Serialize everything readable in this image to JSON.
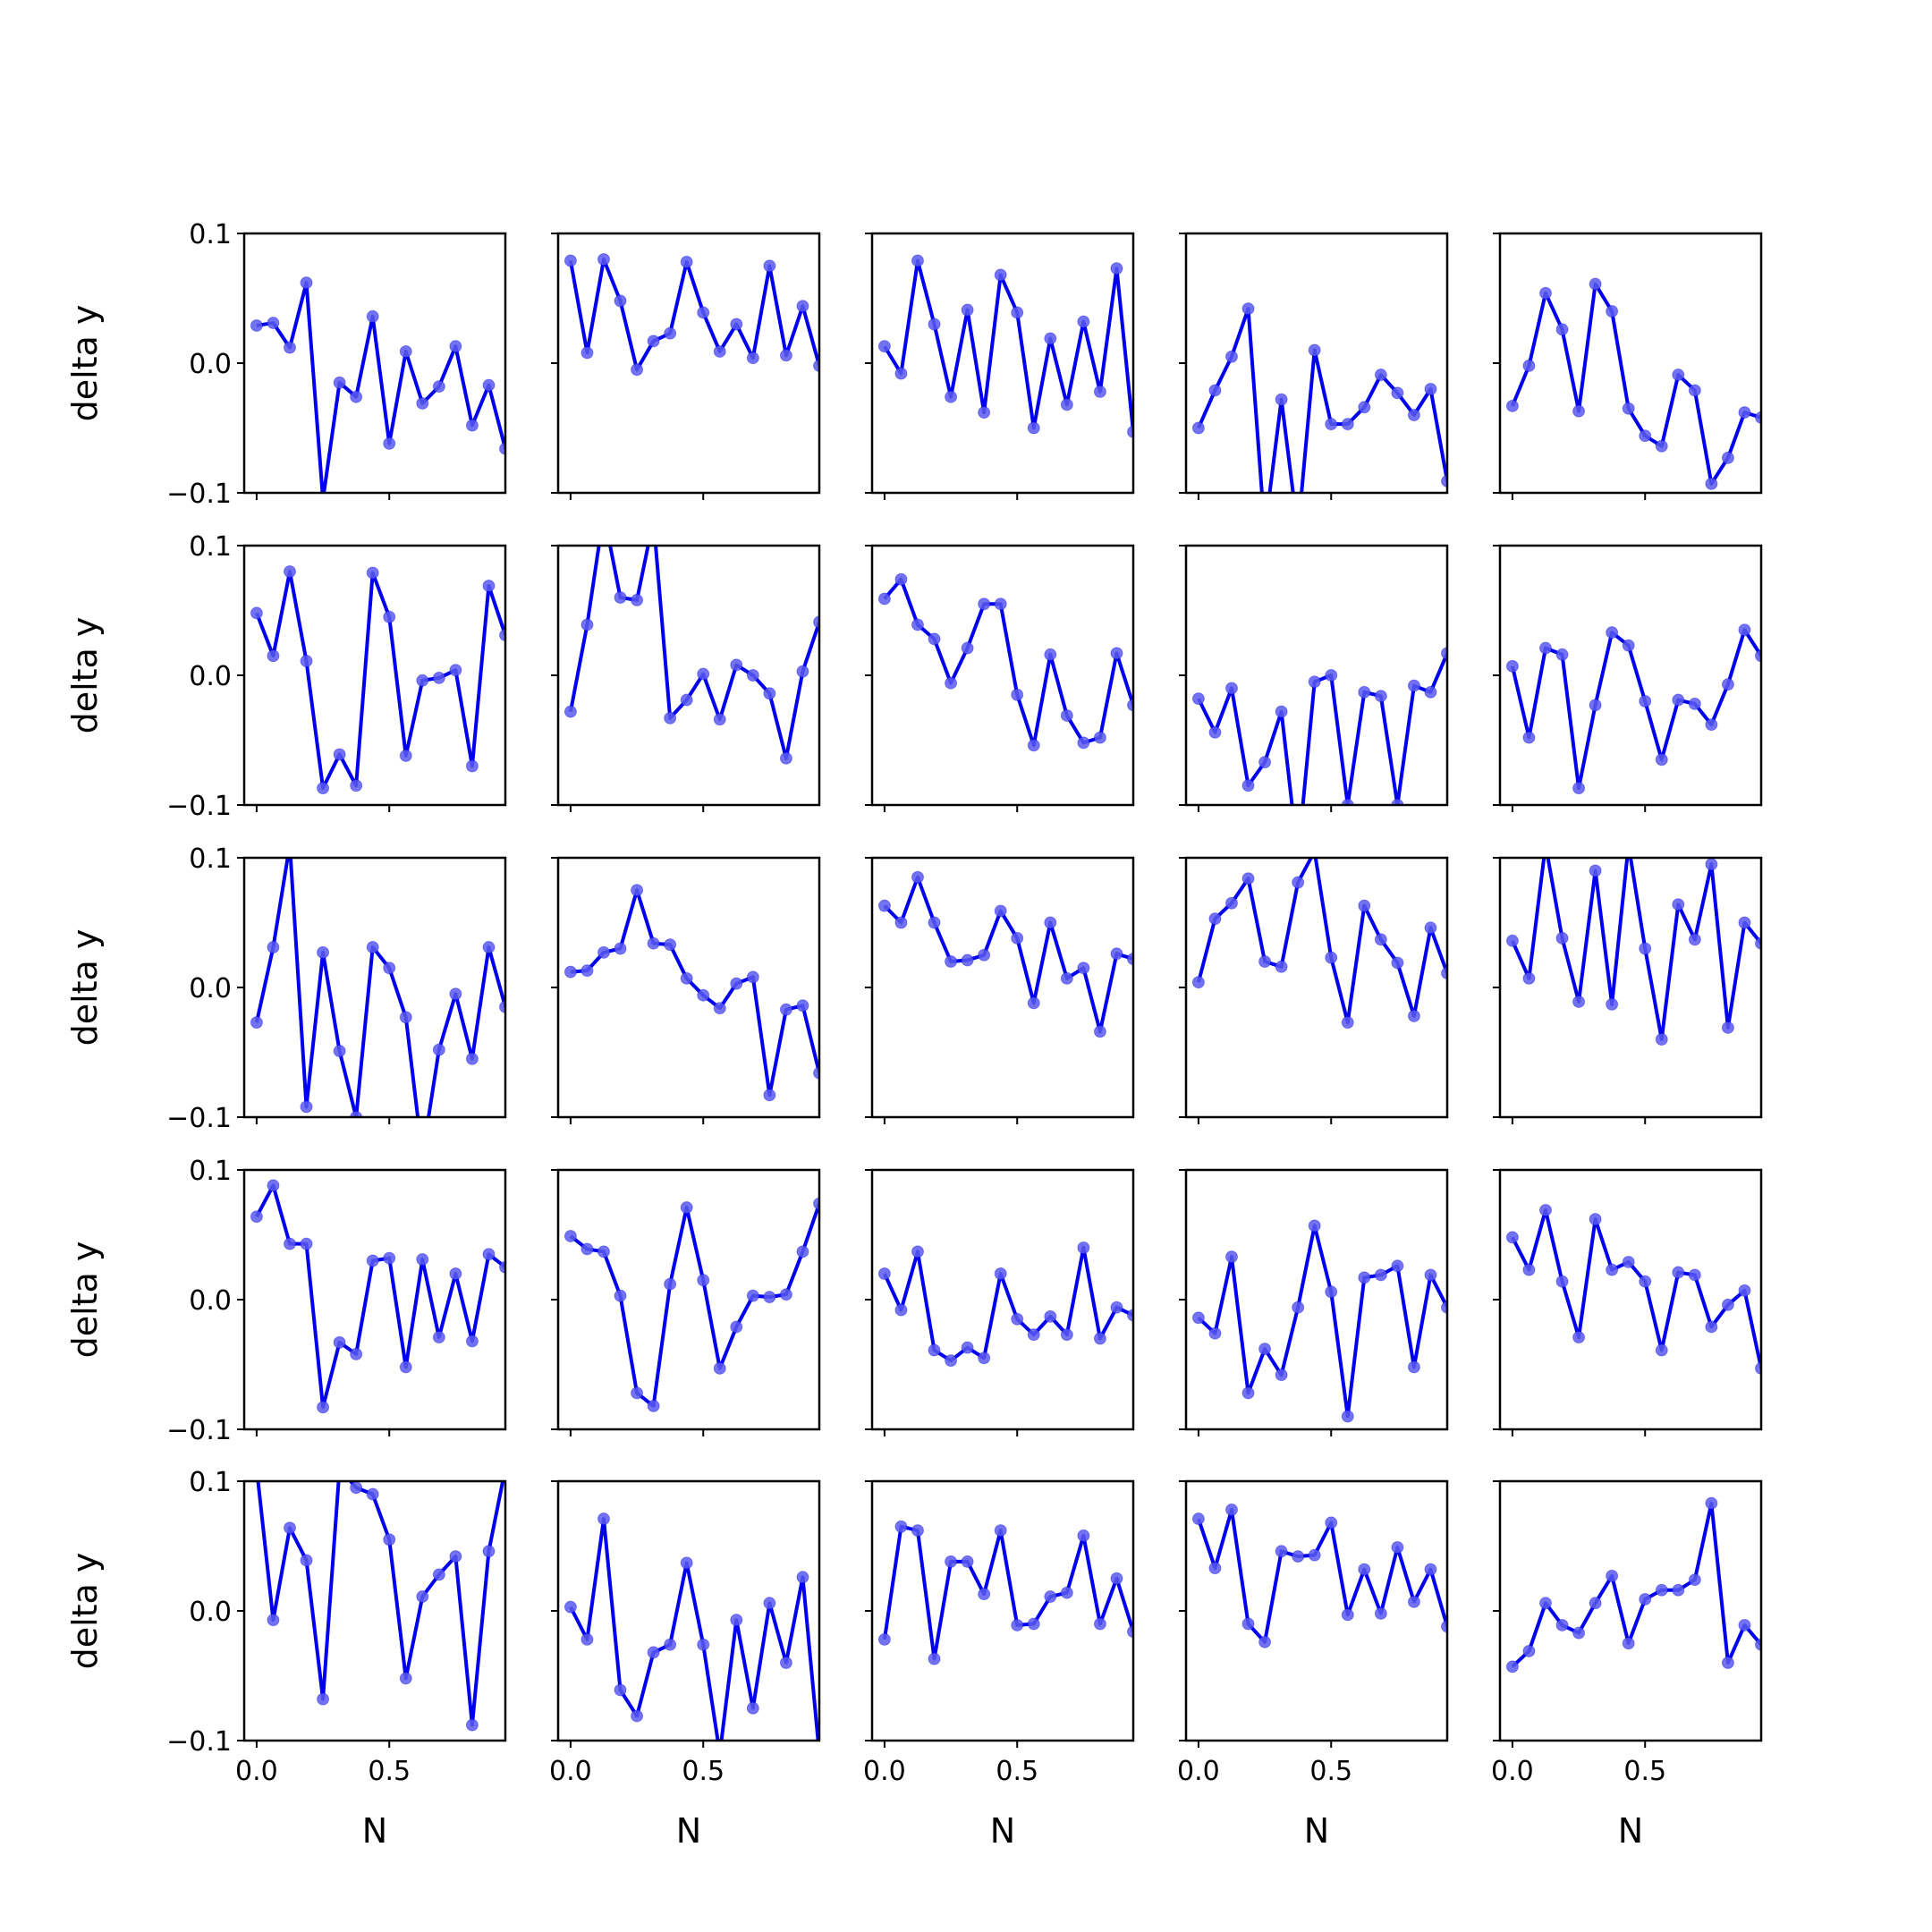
{
  "colors": {
    "line": "#0000ee",
    "marker": "#5b5bee",
    "axes": "#000000",
    "background": "#ffffff"
  },
  "chart_data": {
    "type": "line",
    "layout": "5x5 grid of subplots",
    "xlabel": "N",
    "ylabel": "delta y",
    "xlim": [
      -0.0469,
      0.9375
    ],
    "ylim": [
      -0.1,
      0.1
    ],
    "x_ticks": [
      "0.0",
      "0.5"
    ],
    "y_ticks": [
      "0.1",
      "0.0",
      "−0.1"
    ],
    "grid": false,
    "x": [
      0,
      0.0625,
      0.125,
      0.1875,
      0.25,
      0.3125,
      0.375,
      0.4375,
      0.5,
      0.5625,
      0.625,
      0.6875,
      0.75,
      0.8125,
      0.875,
      0.9375
    ],
    "panels": [
      [
        0.029,
        0.031,
        0.012,
        0.062,
        -0.105,
        -0.015,
        -0.026,
        0.036,
        -0.062,
        0.009,
        -0.031,
        -0.018,
        0.013,
        -0.048,
        -0.017,
        -0.066
      ],
      [
        0.079,
        0.008,
        0.08,
        0.048,
        -0.005,
        0.017,
        0.023,
        0.078,
        0.039,
        0.009,
        0.03,
        0.004,
        0.075,
        0.006,
        0.044,
        -0.002
      ],
      [
        0.013,
        -0.008,
        0.079,
        0.03,
        -0.026,
        0.041,
        -0.038,
        0.068,
        0.039,
        -0.05,
        0.019,
        -0.032,
        0.032,
        -0.022,
        0.073,
        -0.053
      ],
      [
        -0.05,
        -0.021,
        0.005,
        0.042,
        -0.13,
        -0.028,
        -0.13,
        0.01,
        -0.047,
        -0.047,
        -0.034,
        -0.009,
        -0.023,
        -0.04,
        -0.02,
        -0.091
      ],
      [
        -0.033,
        -0.002,
        0.054,
        0.026,
        -0.037,
        0.061,
        0.04,
        -0.035,
        -0.056,
        -0.064,
        -0.009,
        -0.021,
        -0.093,
        -0.073,
        -0.038,
        -0.042
      ],
      [
        0.048,
        0.015,
        0.08,
        0.011,
        -0.087,
        -0.061,
        -0.085,
        0.079,
        0.045,
        -0.062,
        -0.004,
        -0.002,
        0.004,
        -0.07,
        0.069,
        0.031
      ],
      [
        -0.028,
        0.039,
        0.125,
        0.06,
        0.058,
        0.12,
        -0.033,
        -0.019,
        0.001,
        -0.034,
        0.008,
        0.0,
        -0.014,
        -0.064,
        0.003,
        0.041
      ],
      [
        0.059,
        0.074,
        0.039,
        0.028,
        -0.006,
        0.021,
        0.055,
        0.055,
        -0.015,
        -0.054,
        0.016,
        -0.031,
        -0.052,
        -0.048,
        0.017,
        -0.023
      ],
      [
        -0.018,
        -0.044,
        -0.01,
        -0.085,
        -0.067,
        -0.028,
        -0.14,
        -0.005,
        0.0,
        -0.1,
        -0.013,
        -0.016,
        -0.1,
        -0.008,
        -0.013,
        0.017
      ],
      [
        0.007,
        -0.048,
        0.021,
        0.016,
        -0.087,
        -0.023,
        0.033,
        0.023,
        -0.02,
        -0.065,
        -0.019,
        -0.022,
        -0.038,
        -0.007,
        0.035,
        0.015
      ],
      [
        -0.027,
        0.031,
        0.11,
        -0.092,
        0.027,
        -0.049,
        -0.1,
        0.031,
        0.015,
        -0.023,
        -0.13,
        -0.048,
        -0.005,
        -0.055,
        0.031,
        -0.015
      ],
      [
        0.012,
        0.013,
        0.027,
        0.03,
        0.075,
        0.034,
        0.033,
        0.007,
        -0.006,
        -0.016,
        0.003,
        0.008,
        -0.083,
        -0.017,
        -0.014,
        -0.066
      ],
      [
        0.063,
        0.05,
        0.085,
        0.05,
        0.02,
        0.021,
        0.025,
        0.059,
        0.038,
        -0.012,
        0.05,
        0.007,
        0.015,
        -0.034,
        0.026,
        0.022
      ],
      [
        0.004,
        0.053,
        0.065,
        0.084,
        0.02,
        0.016,
        0.081,
        0.105,
        0.023,
        -0.027,
        0.063,
        0.037,
        0.019,
        -0.022,
        0.046,
        0.011
      ],
      [
        0.036,
        0.007,
        0.11,
        0.038,
        -0.011,
        0.09,
        -0.013,
        0.11,
        0.03,
        -0.04,
        0.064,
        0.037,
        0.095,
        -0.031,
        0.05,
        0.034
      ],
      [
        0.064,
        0.088,
        0.043,
        0.043,
        -0.083,
        -0.033,
        -0.042,
        0.03,
        0.032,
        -0.052,
        0.031,
        -0.029,
        0.02,
        -0.032,
        0.035,
        0.025
      ],
      [
        0.049,
        0.039,
        0.037,
        0.003,
        -0.072,
        -0.082,
        0.012,
        0.071,
        0.015,
        -0.053,
        -0.021,
        0.003,
        0.002,
        0.004,
        0.037,
        0.074
      ],
      [
        0.02,
        -0.008,
        0.037,
        -0.039,
        -0.047,
        -0.037,
        -0.045,
        0.02,
        -0.015,
        -0.027,
        -0.013,
        -0.027,
        0.04,
        -0.03,
        -0.006,
        -0.012
      ],
      [
        -0.014,
        -0.026,
        0.033,
        -0.072,
        -0.038,
        -0.058,
        -0.006,
        0.057,
        0.006,
        -0.09,
        0.017,
        0.019,
        0.026,
        -0.052,
        0.019,
        -0.006
      ],
      [
        0.048,
        0.023,
        0.069,
        0.014,
        -0.029,
        0.062,
        0.023,
        0.029,
        0.014,
        -0.039,
        0.021,
        0.019,
        -0.021,
        -0.004,
        0.007,
        -0.053
      ],
      [
        0.11,
        -0.007,
        0.064,
        0.039,
        -0.068,
        0.11,
        0.095,
        0.09,
        0.055,
        -0.052,
        0.011,
        0.028,
        0.042,
        -0.088,
        0.046,
        0.11
      ],
      [
        0.003,
        -0.022,
        0.071,
        -0.061,
        -0.081,
        -0.032,
        -0.026,
        0.037,
        -0.026,
        -0.11,
        -0.007,
        -0.075,
        0.006,
        -0.04,
        0.026,
        -0.11
      ],
      [
        -0.022,
        0.065,
        0.062,
        -0.037,
        0.038,
        0.038,
        0.013,
        0.062,
        -0.011,
        -0.01,
        0.011,
        0.014,
        0.058,
        -0.01,
        0.025,
        -0.016
      ],
      [
        0.071,
        0.033,
        0.078,
        -0.01,
        -0.024,
        0.046,
        0.042,
        0.043,
        0.068,
        -0.003,
        0.032,
        -0.002,
        0.049,
        0.007,
        0.032,
        -0.012
      ],
      [
        -0.043,
        -0.031,
        0.006,
        -0.011,
        -0.017,
        0.006,
        0.027,
        -0.025,
        0.009,
        0.016,
        0.016,
        0.024,
        0.083,
        -0.04,
        -0.011,
        -0.026
      ]
    ]
  }
}
